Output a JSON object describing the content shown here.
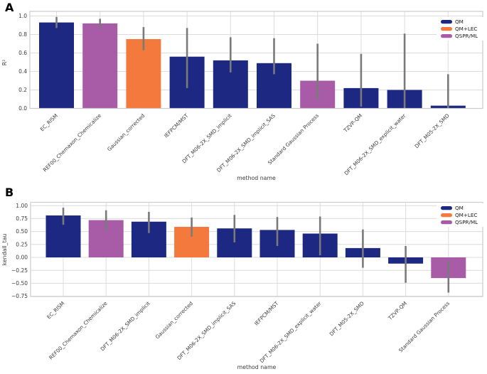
{
  "figure": {
    "background": "#ffffff",
    "text_color": "#3b3b3b",
    "grid_color": "#dcdcdc",
    "frame_color": "#cccccc",
    "errorbar_color": "#7a7a7a"
  },
  "chart_data": [
    {
      "type": "bar",
      "panel_label": "A",
      "title": "",
      "xlabel": "method name",
      "ylabel": "R²",
      "ylim": [
        0,
        1.05
      ],
      "grid": true,
      "legend_position": "upper right",
      "legend": [
        {
          "label": "QM",
          "color": "#1c2882"
        },
        {
          "label": "QM+LEC",
          "color": "#f4793c"
        },
        {
          "label": "QSPR/ML",
          "color": "#a85ca7"
        }
      ],
      "yticks": [
        0.0,
        0.2,
        0.4,
        0.6,
        0.8,
        1.0
      ],
      "ytick_labels": [
        "0.0",
        "0.2",
        "0.4",
        "0.6",
        "0.8",
        "1.0"
      ],
      "categories": [
        "EC_RISM",
        "REF00_Chemaxon_Chemicalize",
        "Gaussian_corrected",
        "IEFPCM/MST",
        "DFT_M06-2X_SMD_implicit",
        "DFT_M06-2X_SMD_implicit_SAS",
        "Standard Gaussian Process",
        "TZVP-QM",
        "DFT_M06-2X_SMD_explicit_water",
        "DFT_M05-2X_SMD"
      ],
      "groups": [
        "QM",
        "QSPR/ML",
        "QM+LEC",
        "QM",
        "QM",
        "QM",
        "QSPR/ML",
        "QM",
        "QM",
        "QM"
      ],
      "values": [
        0.93,
        0.92,
        0.75,
        0.56,
        0.52,
        0.49,
        0.3,
        0.22,
        0.2,
        0.03
      ],
      "errors_low": [
        0.87,
        0.86,
        0.63,
        0.22,
        0.39,
        0.37,
        0.09,
        0.02,
        0.0,
        0.0
      ],
      "errors_high": [
        0.99,
        0.97,
        0.88,
        0.87,
        0.77,
        0.76,
        0.7,
        0.59,
        0.81,
        0.37
      ]
    },
    {
      "type": "bar",
      "panel_label": "B",
      "title": "",
      "xlabel": "method name",
      "ylabel": "kendall_tau",
      "ylim": [
        -0.76,
        1.06
      ],
      "grid": true,
      "legend_position": "upper right",
      "legend": [
        {
          "label": "QM",
          "color": "#1c2882"
        },
        {
          "label": "QM+LEC",
          "color": "#f4793c"
        },
        {
          "label": "QSPR/ML",
          "color": "#a85ca7"
        }
      ],
      "yticks": [
        1.0,
        0.75,
        0.5,
        0.25,
        0.0,
        -0.25,
        -0.5,
        -0.75
      ],
      "ytick_labels": [
        "1.00",
        "0.75",
        "0.50",
        "0.25",
        "0.00",
        "−0.25",
        "−0.50",
        "−0.75"
      ],
      "categories": [
        "EC_RISM",
        "REF00_Chemaxon_Chemicalize",
        "DFT_M06-2X_SMD_implicit",
        "Gaussian_corrected",
        "DFT_M06-2X_SMD_implicit_SAS",
        "IEFPCM/MST",
        "DFT_M06-2X_SMD_explicit_water",
        "DFT_M05-2X_SMD",
        "TZVP-QM",
        "Standard Gaussian Process"
      ],
      "groups": [
        "QM",
        "QSPR/ML",
        "QM",
        "QM+LEC",
        "QM",
        "QM",
        "QM",
        "QM",
        "QM",
        "QSPR/ML"
      ],
      "values": [
        0.81,
        0.72,
        0.69,
        0.59,
        0.56,
        0.53,
        0.46,
        0.18,
        -0.12,
        -0.4
      ],
      "errors_low": [
        0.63,
        0.51,
        0.47,
        0.4,
        0.29,
        0.22,
        0.04,
        -0.2,
        -0.49,
        -0.68
      ],
      "errors_high": [
        0.96,
        0.91,
        0.88,
        0.77,
        0.82,
        0.78,
        0.79,
        0.54,
        0.22,
        -0.07
      ]
    }
  ]
}
